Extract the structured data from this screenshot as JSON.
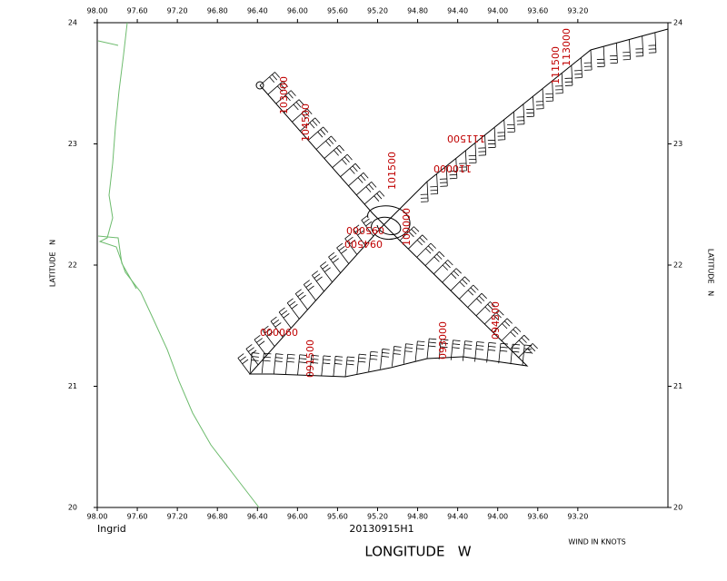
{
  "map": {
    "storm": "Ingrid",
    "mission": "20130915H1",
    "note": "WIND IN KNOTS",
    "x_label": "LONGITUDE   W",
    "y_label": "LATITUDE   N",
    "xlim": [
      98,
      92.3
    ],
    "xticks": [
      {
        "value": 98,
        "label": "98.00"
      },
      {
        "value": 97.6,
        "label": "97.60"
      },
      {
        "value": 97.2,
        "label": "97.20"
      },
      {
        "value": 96.8,
        "label": "96.80"
      },
      {
        "value": 96.4,
        "label": "96.40"
      },
      {
        "value": 96,
        "label": "96.00"
      },
      {
        "value": 95.6,
        "label": "95.60"
      },
      {
        "value": 95.2,
        "label": "95.20"
      },
      {
        "value": 94.8,
        "label": "94.80"
      },
      {
        "value": 94.4,
        "label": "94.40"
      },
      {
        "value": 94,
        "label": "94.00"
      },
      {
        "value": 93.6,
        "label": "93.60"
      },
      {
        "value": 93.2,
        "label": "93.20"
      }
    ],
    "ylim": [
      20,
      24
    ],
    "yticks": [
      20,
      21,
      22,
      23,
      24
    ],
    "time_labels": [
      "103000",
      "104500",
      "111500",
      "110000",
      "101500",
      "100000",
      "095000",
      "094500",
      "090000",
      "091500",
      "093000",
      "094500",
      "113000",
      "111500"
    ]
  }
}
